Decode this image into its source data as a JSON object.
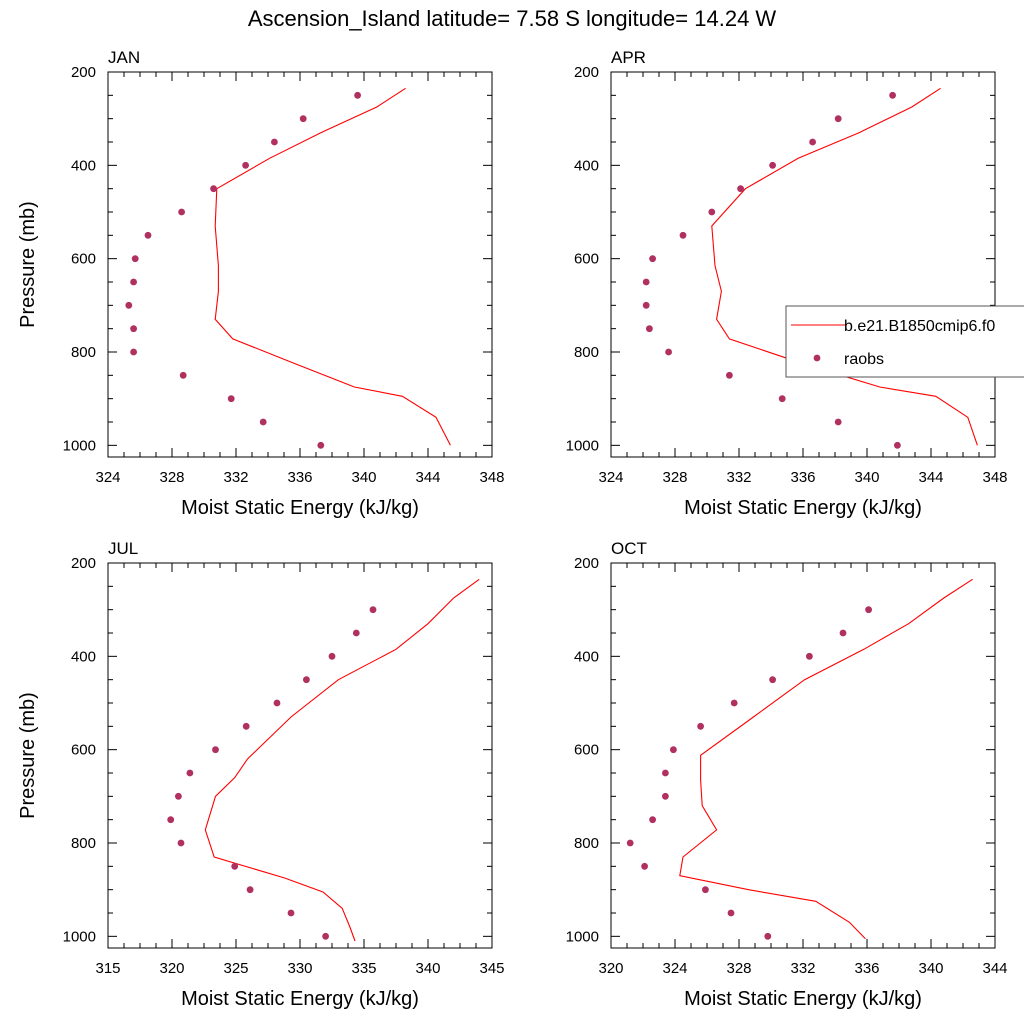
{
  "figure": {
    "title": "Ascension_Island  latitude= 7.58 S longitude= 14.24 W"
  },
  "colors": {
    "model": "#ff0000",
    "obs": "#b03060",
    "axis": "#000000"
  },
  "legend": {
    "placement": "right side, attached to APR panel",
    "entries": [
      {
        "label": "b.e21.B1850cmip6.f0",
        "style": "line"
      },
      {
        "label": "raobs",
        "style": "marker"
      }
    ]
  },
  "chart_data": [
    {
      "type": "line",
      "title": "JAN",
      "xlabel": "Moist Static Energy (kJ/kg)",
      "ylabel": "Pressure (mb)",
      "xlim": [
        324,
        348
      ],
      "ylim": [
        200,
        1025
      ],
      "y_inverted": true,
      "xticks": [
        324,
        328,
        332,
        336,
        340,
        344,
        348
      ],
      "yticks": [
        200,
        400,
        600,
        800,
        1000
      ],
      "series": [
        {
          "name": "b.e21.B1850cmip6.f0",
          "style": "line",
          "x": [
            342.6,
            340.8,
            337.3,
            334.1,
            330.8,
            330.7,
            330.9,
            330.9,
            330.7,
            331.8,
            335.7,
            339.4,
            342.4,
            344.5,
            345.4
          ],
          "y": [
            235,
            275,
            330,
            385,
            450,
            530,
            615,
            670,
            730,
            772,
            825,
            875,
            895,
            940,
            1000
          ]
        },
        {
          "name": "raobs",
          "style": "marker",
          "x": [
            339.6,
            336.2,
            334.4,
            332.6,
            330.6,
            328.6,
            326.5,
            325.7,
            325.6,
            325.3,
            325.6,
            325.6,
            328.7,
            331.7,
            333.7,
            337.3
          ],
          "y": [
            250,
            300,
            350,
            400,
            450,
            500,
            550,
            600,
            650,
            700,
            750,
            800,
            850,
            900,
            950,
            1000
          ]
        }
      ]
    },
    {
      "type": "line",
      "title": "APR",
      "xlabel": "Moist Static Energy (kJ/kg)",
      "ylabel": "",
      "xlim": [
        324,
        348
      ],
      "ylim": [
        200,
        1025
      ],
      "y_inverted": true,
      "xticks": [
        324,
        328,
        332,
        336,
        340,
        344,
        348
      ],
      "yticks": [
        200,
        400,
        600,
        800,
        1000
      ],
      "series": [
        {
          "name": "b.e21.B1850cmip6.f0",
          "style": "line",
          "x": [
            344.6,
            342.8,
            339.5,
            335.7,
            332.4,
            330.3,
            330.5,
            330.9,
            330.6,
            331.4,
            336.0,
            340.8,
            344.3,
            346.3,
            346.9
          ],
          "y": [
            235,
            275,
            330,
            385,
            450,
            530,
            615,
            670,
            730,
            772,
            825,
            875,
            895,
            940,
            1000
          ]
        },
        {
          "name": "raobs",
          "style": "marker",
          "x": [
            341.6,
            338.2,
            336.6,
            334.1,
            332.1,
            330.3,
            328.5,
            326.6,
            326.2,
            326.2,
            326.4,
            327.6,
            331.4,
            334.7,
            338.2,
            341.9
          ],
          "y": [
            250,
            300,
            350,
            400,
            450,
            500,
            550,
            600,
            650,
            700,
            750,
            800,
            850,
            900,
            950,
            1000
          ]
        }
      ]
    },
    {
      "type": "line",
      "title": "JUL",
      "xlabel": "Moist Static Energy (kJ/kg)",
      "ylabel": "Pressure (mb)",
      "xlim": [
        315,
        345
      ],
      "ylim": [
        200,
        1025
      ],
      "y_inverted": true,
      "xticks": [
        315,
        320,
        325,
        330,
        335,
        340,
        345
      ],
      "yticks": [
        200,
        400,
        600,
        800,
        1000
      ],
      "series": [
        {
          "name": "b.e21.B1850cmip6.f0",
          "style": "line",
          "x": [
            344.0,
            342.0,
            340.0,
            337.5,
            333.0,
            329.3,
            325.9,
            324.9,
            323.4,
            322.6,
            323.3,
            328.8,
            331.8,
            333.3,
            333.9,
            334.3
          ],
          "y": [
            235,
            275,
            330,
            385,
            450,
            530,
            620,
            660,
            700,
            772,
            830,
            875,
            905,
            940,
            980,
            1010
          ]
        },
        {
          "name": "raobs",
          "style": "marker",
          "x": [
            335.7,
            334.4,
            332.5,
            330.5,
            328.2,
            325.8,
            323.4,
            321.4,
            320.5,
            319.9,
            320.7,
            324.9,
            326.1,
            329.3,
            332.0
          ],
          "y": [
            300,
            350,
            400,
            450,
            500,
            550,
            600,
            650,
            700,
            750,
            800,
            850,
            900,
            950,
            1000
          ]
        }
      ]
    },
    {
      "type": "line",
      "title": "OCT",
      "xlabel": "Moist Static Energy (kJ/kg)",
      "ylabel": "",
      "xlim": [
        320,
        344
      ],
      "ylim": [
        200,
        1025
      ],
      "y_inverted": true,
      "xticks": [
        320,
        324,
        328,
        332,
        336,
        340,
        344
      ],
      "yticks": [
        200,
        400,
        600,
        800,
        1000
      ],
      "series": [
        {
          "name": "b.e21.B1850cmip6.f0",
          "style": "line",
          "x": [
            342.6,
            340.8,
            338.6,
            335.8,
            332.1,
            328.9,
            325.6,
            325.6,
            325.7,
            326.6,
            324.5,
            324.3,
            328.6,
            332.8,
            334.9,
            335.9
          ],
          "y": [
            235,
            275,
            330,
            385,
            450,
            530,
            612,
            665,
            720,
            772,
            830,
            870,
            900,
            925,
            970,
            1005
          ]
        },
        {
          "name": "raobs",
          "style": "marker",
          "x": [
            336.1,
            334.5,
            332.4,
            330.1,
            327.7,
            325.6,
            323.9,
            323.4,
            323.4,
            322.6,
            321.2,
            322.1,
            325.9,
            327.5,
            329.8
          ],
          "y": [
            300,
            350,
            400,
            450,
            500,
            550,
            600,
            650,
            700,
            750,
            800,
            850,
            900,
            950,
            1000
          ]
        }
      ]
    }
  ]
}
